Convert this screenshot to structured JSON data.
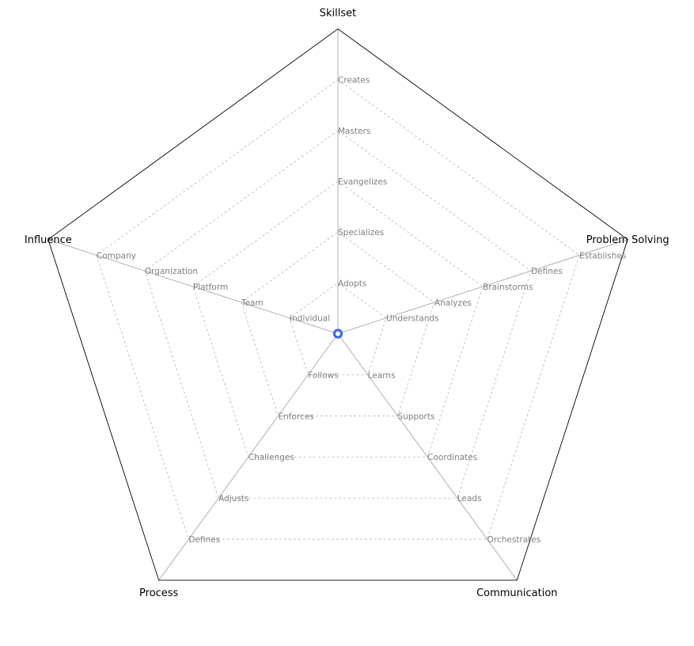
{
  "chart_data": {
    "type": "radar",
    "title": "",
    "axes": [
      {
        "name": "Skillset",
        "levels": [
          "Adopts",
          "Specializes",
          "Evangelizes",
          "Masters",
          "Creates"
        ]
      },
      {
        "name": "Problem Solving",
        "levels": [
          "Understands",
          "Analyzes",
          "Brainstorms",
          "Defines",
          "Establishes"
        ]
      },
      {
        "name": "Communication",
        "levels": [
          "Learns",
          "Supports",
          "Coordinates",
          "Leads",
          "Orchestrates"
        ]
      },
      {
        "name": "Process",
        "levels": [
          "Follows",
          "Enforces",
          "Challenges",
          "Adjusts",
          "Defines"
        ]
      },
      {
        "name": "Influence",
        "levels": [
          "Individual",
          "Team",
          "Platform",
          "Organization",
          "Company"
        ]
      }
    ],
    "rlim": [
      0,
      6
    ],
    "grid": true,
    "series": [
      {
        "values": [
          0,
          0,
          0,
          0,
          0
        ],
        "color": "#4169e1"
      }
    ]
  }
}
